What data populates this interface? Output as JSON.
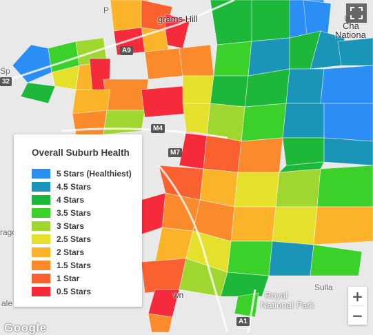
{
  "legend": {
    "title": "Overall Suburb Health",
    "items": [
      {
        "label": "5 Stars (Healthiest)",
        "color": "#2b8ef5"
      },
      {
        "label": "4.5 Stars",
        "color": "#1a95b8"
      },
      {
        "label": "4 Stars",
        "color": "#1db83a"
      },
      {
        "label": "3.5 Stars",
        "color": "#3bd02a"
      },
      {
        "label": "3 Stars",
        "color": "#9fd630"
      },
      {
        "label": "2.5 Stars",
        "color": "#e4e02c"
      },
      {
        "label": "2 Stars",
        "color": "#fbb42a"
      },
      {
        "label": "1.5 Stars",
        "color": "#fa8a2c"
      },
      {
        "label": "1 Star",
        "color": "#fa6131"
      },
      {
        "label": "0.5 Stars",
        "color": "#f52a3a"
      }
    ]
  },
  "map_labels": {
    "hill": "grams Hill",
    "national_line1": "Cha",
    "national_line2": "Nationa",
    "royal_line1": "Royal",
    "royal_line2": "National Park",
    "own": "wn",
    "ulla": "Sulla",
    "ale": "ale",
    "rago": "rago",
    "sp": "Sp",
    "p": "P",
    "in": "In"
  },
  "roads": {
    "a9": "A9",
    "m4": "M4",
    "m7": "M7",
    "a1": "A1",
    "r32": "32"
  },
  "controls": {
    "zoom_in": "+",
    "zoom_out": "−",
    "fullscreen_icon": "fullscreen-icon"
  },
  "attribution": "Google"
}
